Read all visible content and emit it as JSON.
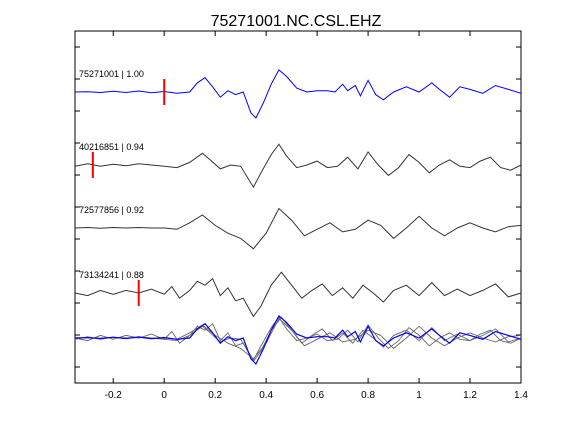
{
  "chart_data": {
    "type": "line",
    "title": "75271001.NC.CSL.EHZ",
    "xlabel": "",
    "ylabel": "",
    "xlim": [
      -0.35,
      1.4
    ],
    "x_ticks": [
      -0.2,
      0,
      0.2,
      0.4,
      0.6,
      0.8,
      1,
      1.2,
      1.4
    ],
    "x_tick_labels": [
      "-0.2",
      "0",
      "0.2",
      "0.4",
      "0.6",
      "0.8",
      "1",
      "1.2",
      "1.4"
    ],
    "grid": false,
    "series": [
      {
        "name": "75271001 | 1.00",
        "label": "75271001 | 1.00",
        "color": "#0000ff",
        "pick_time": 0.0,
        "pick_color": "#ff0000",
        "points": [
          [
            -0.35,
            0.0
          ],
          [
            -0.3,
            0.01
          ],
          [
            -0.25,
            -0.02
          ],
          [
            -0.2,
            0.03
          ],
          [
            -0.15,
            -0.02
          ],
          [
            -0.1,
            0.04
          ],
          [
            -0.05,
            -0.03
          ],
          [
            0.0,
            0.02
          ],
          [
            0.05,
            -0.05
          ],
          [
            0.1,
            0.0
          ],
          [
            0.13,
            0.35
          ],
          [
            0.16,
            0.55
          ],
          [
            0.19,
            0.2
          ],
          [
            0.22,
            -0.2
          ],
          [
            0.25,
            0.05
          ],
          [
            0.28,
            -0.1
          ],
          [
            0.31,
            0.0
          ],
          [
            0.34,
            -0.8
          ],
          [
            0.36,
            -1.0
          ],
          [
            0.39,
            -0.4
          ],
          [
            0.42,
            0.3
          ],
          [
            0.45,
            0.85
          ],
          [
            0.48,
            0.6
          ],
          [
            0.52,
            0.15
          ],
          [
            0.56,
            0.0
          ],
          [
            0.6,
            0.05
          ],
          [
            0.64,
            0.05
          ],
          [
            0.67,
            0.0
          ],
          [
            0.7,
            0.3
          ],
          [
            0.72,
            0.05
          ],
          [
            0.75,
            0.25
          ],
          [
            0.77,
            -0.15
          ],
          [
            0.8,
            0.45
          ],
          [
            0.83,
            -0.1
          ],
          [
            0.86,
            -0.3
          ],
          [
            0.9,
            0.0
          ],
          [
            0.95,
            0.2
          ],
          [
            1.0,
            0.0
          ],
          [
            1.05,
            0.35
          ],
          [
            1.08,
            0.1
          ],
          [
            1.12,
            -0.2
          ],
          [
            1.16,
            0.2
          ],
          [
            1.2,
            0.1
          ],
          [
            1.25,
            -0.05
          ],
          [
            1.3,
            0.25
          ],
          [
            1.35,
            0.1
          ],
          [
            1.4,
            -0.05
          ]
        ]
      },
      {
        "name": "40216851 | 0.94",
        "label": "40216851 | 0.94",
        "color": "#333333",
        "pick_time": -0.28,
        "pick_color": "#ff0000",
        "points": [
          [
            -0.35,
            -0.05
          ],
          [
            -0.3,
            0.05
          ],
          [
            -0.25,
            -0.05
          ],
          [
            -0.2,
            0.03
          ],
          [
            -0.15,
            -0.03
          ],
          [
            -0.1,
            0.05
          ],
          [
            -0.05,
            0.0
          ],
          [
            0.0,
            -0.05
          ],
          [
            0.05,
            -0.1
          ],
          [
            0.1,
            0.1
          ],
          [
            0.15,
            0.45
          ],
          [
            0.18,
            0.2
          ],
          [
            0.22,
            -0.15
          ],
          [
            0.26,
            0.0
          ],
          [
            0.3,
            -0.05
          ],
          [
            0.35,
            -0.85
          ],
          [
            0.38,
            -0.3
          ],
          [
            0.42,
            0.4
          ],
          [
            0.45,
            0.8
          ],
          [
            0.48,
            0.35
          ],
          [
            0.52,
            -0.1
          ],
          [
            0.56,
            0.0
          ],
          [
            0.6,
            0.15
          ],
          [
            0.64,
            -0.1
          ],
          [
            0.68,
            -0.05
          ],
          [
            0.72,
            0.3
          ],
          [
            0.76,
            -0.15
          ],
          [
            0.8,
            0.5
          ],
          [
            0.84,
            0.0
          ],
          [
            0.88,
            -0.4
          ],
          [
            0.92,
            -0.1
          ],
          [
            0.96,
            0.4
          ],
          [
            1.0,
            0.1
          ],
          [
            1.04,
            -0.3
          ],
          [
            1.08,
            0.0
          ],
          [
            1.12,
            0.2
          ],
          [
            1.16,
            -0.05
          ],
          [
            1.2,
            -0.1
          ],
          [
            1.24,
            0.15
          ],
          [
            1.28,
            0.3
          ],
          [
            1.32,
            -0.1
          ],
          [
            1.36,
            -0.2
          ],
          [
            1.4,
            0.0
          ]
        ]
      },
      {
        "name": "72577856 | 0.92",
        "label": "72577856 | 0.92",
        "color": "#333333",
        "pick_time": null,
        "points": [
          [
            -0.35,
            0.0
          ],
          [
            -0.3,
            0.02
          ],
          [
            -0.25,
            -0.01
          ],
          [
            -0.2,
            0.02
          ],
          [
            -0.15,
            0.0
          ],
          [
            -0.1,
            0.02
          ],
          [
            -0.05,
            0.0
          ],
          [
            0.0,
            0.0
          ],
          [
            0.05,
            -0.05
          ],
          [
            0.1,
            0.2
          ],
          [
            0.15,
            0.5
          ],
          [
            0.2,
            0.1
          ],
          [
            0.25,
            -0.2
          ],
          [
            0.3,
            -0.4
          ],
          [
            0.35,
            -0.8
          ],
          [
            0.4,
            -0.2
          ],
          [
            0.45,
            0.75
          ],
          [
            0.5,
            0.3
          ],
          [
            0.55,
            -0.3
          ],
          [
            0.6,
            -0.05
          ],
          [
            0.65,
            0.2
          ],
          [
            0.7,
            -0.15
          ],
          [
            0.75,
            -0.05
          ],
          [
            0.8,
            0.3
          ],
          [
            0.85,
            0.1
          ],
          [
            0.9,
            -0.4
          ],
          [
            0.95,
            0.0
          ],
          [
            1.0,
            0.45
          ],
          [
            1.05,
            0.0
          ],
          [
            1.1,
            -0.3
          ],
          [
            1.15,
            0.0
          ],
          [
            1.2,
            0.2
          ],
          [
            1.25,
            0.0
          ],
          [
            1.3,
            -0.15
          ],
          [
            1.35,
            0.05
          ],
          [
            1.4,
            0.1
          ]
        ]
      },
      {
        "name": "73134241 | 0.88",
        "label": "73134241 | 0.88",
        "color": "#333333",
        "pick_time": -0.1,
        "pick_color": "#ff0000",
        "points": [
          [
            -0.35,
            0.0
          ],
          [
            -0.3,
            -0.1
          ],
          [
            -0.25,
            0.1
          ],
          [
            -0.2,
            -0.05
          ],
          [
            -0.15,
            0.1
          ],
          [
            -0.1,
            0.0
          ],
          [
            -0.05,
            0.15
          ],
          [
            0.0,
            -0.05
          ],
          [
            0.03,
            0.25
          ],
          [
            0.06,
            -0.2
          ],
          [
            0.1,
            0.1
          ],
          [
            0.13,
            0.45
          ],
          [
            0.16,
            0.3
          ],
          [
            0.19,
            0.55
          ],
          [
            0.22,
            -0.1
          ],
          [
            0.25,
            0.2
          ],
          [
            0.28,
            -0.3
          ],
          [
            0.31,
            -0.2
          ],
          [
            0.35,
            -0.9
          ],
          [
            0.38,
            -0.5
          ],
          [
            0.42,
            0.3
          ],
          [
            0.46,
            0.8
          ],
          [
            0.5,
            0.3
          ],
          [
            0.54,
            -0.2
          ],
          [
            0.58,
            0.1
          ],
          [
            0.62,
            0.35
          ],
          [
            0.66,
            -0.1
          ],
          [
            0.7,
            0.2
          ],
          [
            0.74,
            -0.2
          ],
          [
            0.78,
            0.3
          ],
          [
            0.82,
            0.0
          ],
          [
            0.86,
            -0.35
          ],
          [
            0.9,
            0.1
          ],
          [
            0.95,
            0.3
          ],
          [
            1.0,
            -0.1
          ],
          [
            1.05,
            0.4
          ],
          [
            1.1,
            -0.1
          ],
          [
            1.15,
            0.15
          ],
          [
            1.2,
            -0.1
          ],
          [
            1.25,
            0.1
          ],
          [
            1.3,
            0.35
          ],
          [
            1.35,
            -0.15
          ],
          [
            1.4,
            0.0
          ]
        ]
      }
    ]
  }
}
